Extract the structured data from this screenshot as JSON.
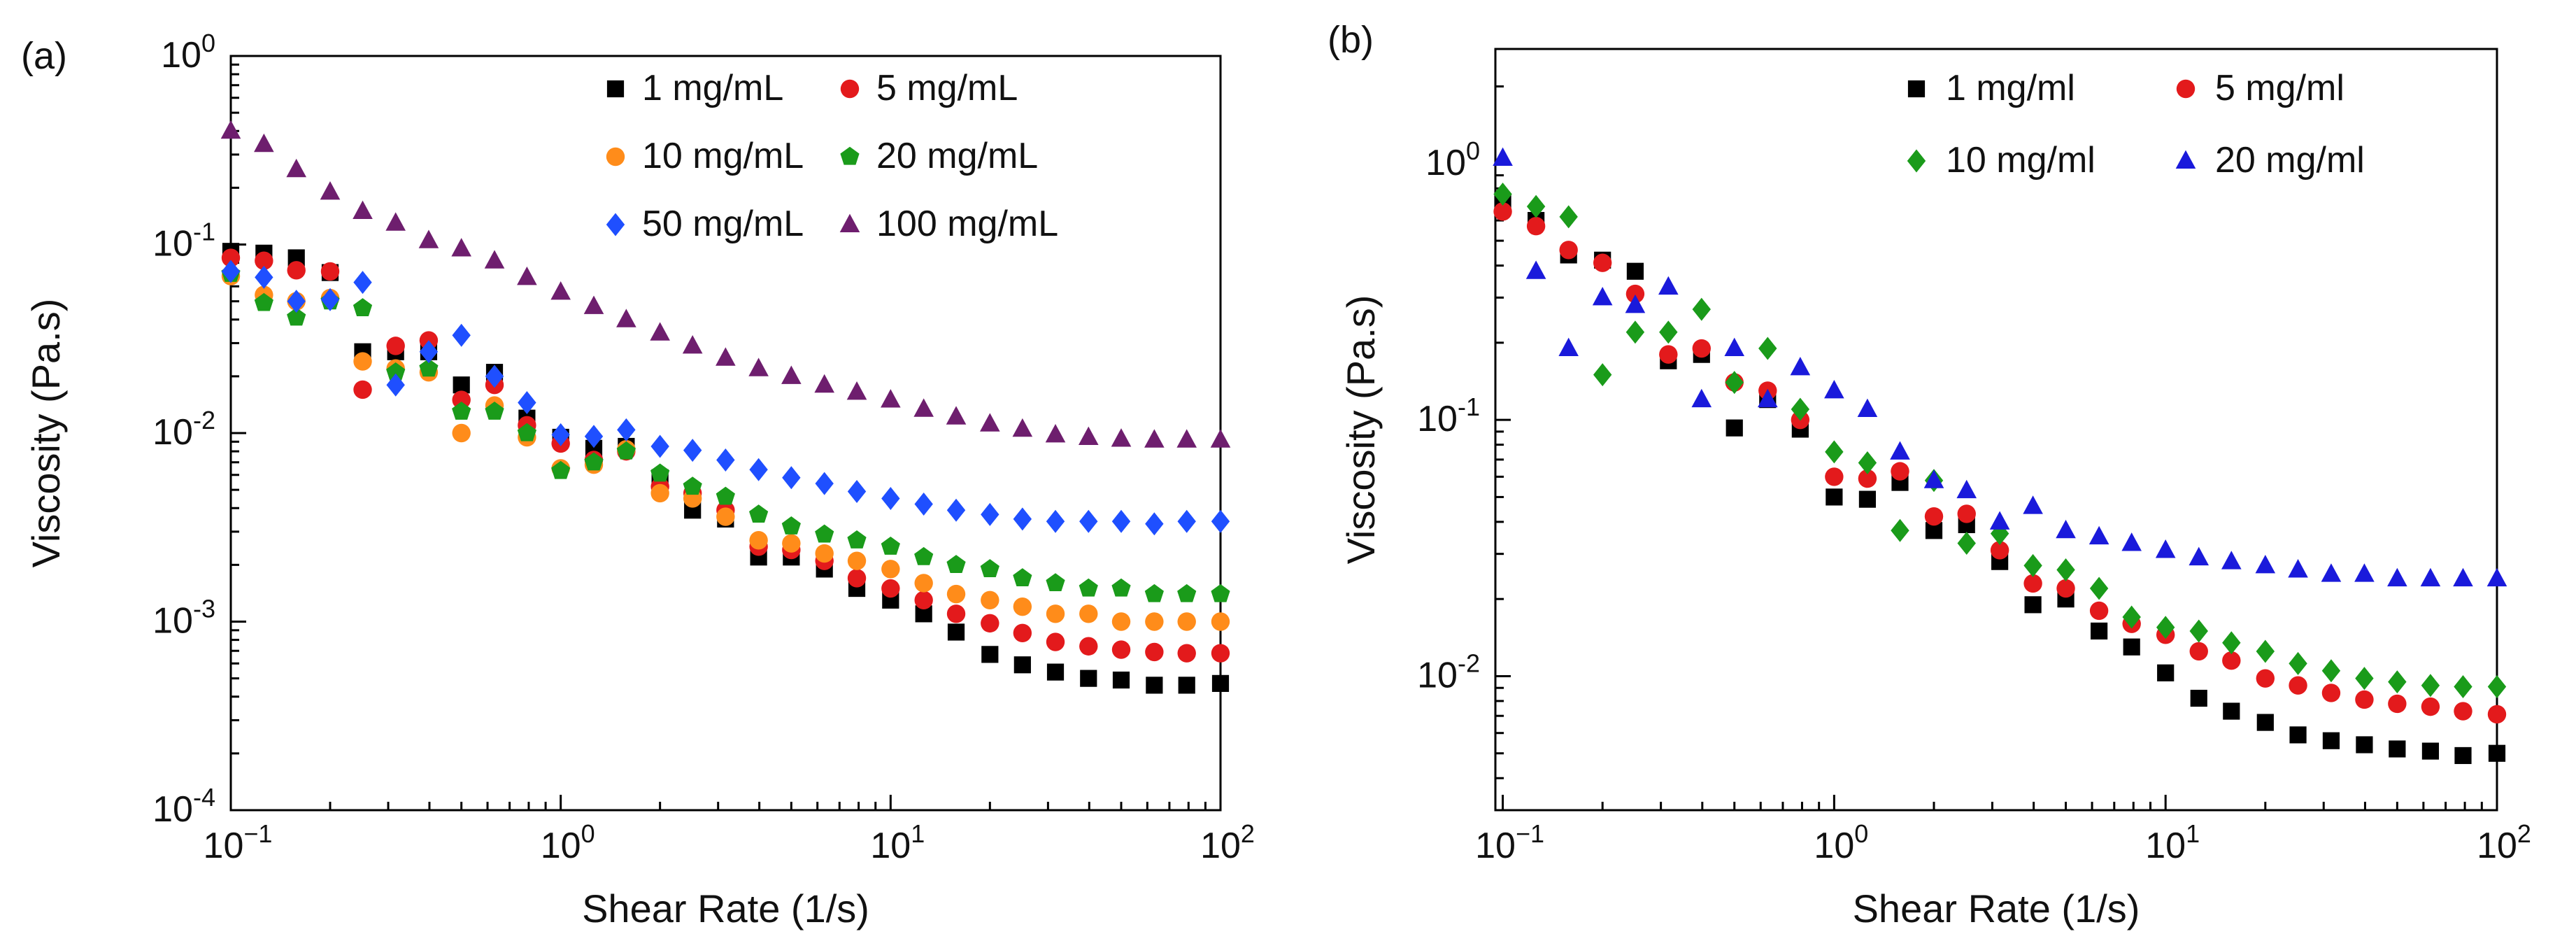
{
  "chart_data": [
    {
      "panel": "(a)",
      "type": "scatter",
      "xscale": "log",
      "yscale": "log",
      "xlabel": "Shear Rate (1/s)",
      "ylabel": "Viscosity (Pa.s)",
      "xlim": [
        0.1,
        100
      ],
      "ylim": [
        0.0001,
        1
      ],
      "xticks": [
        {
          "base": "10",
          "exp": "−1"
        },
        {
          "base": "10",
          "exp": "0"
        },
        {
          "base": "10",
          "exp": "1"
        },
        {
          "base": "10",
          "exp": "2"
        }
      ],
      "yticks": [
        {
          "base": "10",
          "exp": "-4"
        },
        {
          "base": "10",
          "exp": "-3"
        },
        {
          "base": "10",
          "exp": "-2"
        },
        {
          "base": "10",
          "exp": "-1"
        },
        {
          "base": "10",
          "exp": "0"
        }
      ],
      "legend_position": "top-right",
      "series": [
        {
          "name": "1 mg/mL",
          "color": "#000000",
          "marker": "square",
          "x": [
            0.1,
            0.126,
            0.158,
            0.2,
            0.251,
            0.316,
            0.398,
            0.5,
            0.63,
            0.79,
            1.0,
            1.26,
            1.58,
            2.0,
            2.51,
            3.16,
            3.98,
            5.0,
            6.3,
            7.9,
            10,
            12.6,
            15.8,
            20,
            25.1,
            31.6,
            39.8,
            50,
            63,
            79,
            100
          ],
          "y": [
            0.092,
            0.09,
            0.085,
            0.071,
            0.027,
            0.027,
            0.027,
            0.018,
            0.021,
            0.012,
            0.0095,
            0.0083,
            0.0085,
            0.0058,
            0.0039,
            0.0035,
            0.0022,
            0.0022,
            0.0019,
            0.0015,
            0.0013,
            0.0011,
            0.00088,
            0.00067,
            0.00059,
            0.00054,
            0.0005,
            0.00049,
            0.00046,
            0.00046,
            0.00047
          ]
        },
        {
          "name": "5 mg/mL",
          "color": "#e31a1c",
          "marker": "circle",
          "x": [
            0.1,
            0.126,
            0.158,
            0.2,
            0.251,
            0.316,
            0.398,
            0.5,
            0.63,
            0.79,
            1.0,
            1.26,
            1.58,
            2.0,
            2.51,
            3.16,
            3.98,
            5.0,
            6.3,
            7.9,
            10,
            12.6,
            15.8,
            20,
            25.1,
            31.6,
            39.8,
            50,
            63,
            79,
            100
          ],
          "y": [
            0.085,
            0.082,
            0.073,
            0.072,
            0.017,
            0.029,
            0.031,
            0.015,
            0.018,
            0.011,
            0.0088,
            0.0072,
            0.008,
            0.0052,
            0.0048,
            0.0039,
            0.0025,
            0.0024,
            0.0021,
            0.0017,
            0.0015,
            0.0013,
            0.0011,
            0.00098,
            0.00087,
            0.00078,
            0.00074,
            0.00071,
            0.00069,
            0.00068,
            0.00068
          ]
        },
        {
          "name": "10 mg/mL",
          "color": "#ff8c1a",
          "marker": "circle",
          "x": [
            0.1,
            0.126,
            0.158,
            0.2,
            0.251,
            0.316,
            0.398,
            0.5,
            0.63,
            0.79,
            1.0,
            1.26,
            1.58,
            2.0,
            2.51,
            3.16,
            3.98,
            5.0,
            6.3,
            7.9,
            10,
            12.6,
            15.8,
            20,
            25.1,
            31.6,
            39.8,
            50,
            63,
            79,
            100
          ],
          "y": [
            0.068,
            0.054,
            0.05,
            0.052,
            0.024,
            0.022,
            0.021,
            0.01,
            0.014,
            0.0095,
            0.0065,
            0.0068,
            0.0082,
            0.0048,
            0.0045,
            0.0036,
            0.0027,
            0.0026,
            0.0023,
            0.0021,
            0.0019,
            0.0016,
            0.0014,
            0.0013,
            0.0012,
            0.0011,
            0.0011,
            0.001,
            0.001,
            0.001,
            0.001
          ]
        },
        {
          "name": "20 mg/mL",
          "color": "#1a9b1a",
          "marker": "pentagon",
          "x": [
            0.1,
            0.126,
            0.158,
            0.2,
            0.251,
            0.316,
            0.398,
            0.5,
            0.63,
            0.79,
            1.0,
            1.26,
            1.58,
            2.0,
            2.51,
            3.16,
            3.98,
            5.0,
            6.3,
            7.9,
            10,
            12.6,
            15.8,
            20,
            25.1,
            31.6,
            39.8,
            50,
            63,
            79,
            100
          ],
          "y": [
            0.07,
            0.049,
            0.041,
            0.05,
            0.046,
            0.021,
            0.022,
            0.013,
            0.013,
            0.01,
            0.0063,
            0.007,
            0.008,
            0.0061,
            0.0052,
            0.0046,
            0.0037,
            0.0032,
            0.0029,
            0.0027,
            0.0025,
            0.0022,
            0.002,
            0.0019,
            0.0017,
            0.0016,
            0.0015,
            0.0015,
            0.0014,
            0.0014,
            0.0014
          ]
        },
        {
          "name": "50 mg/mL",
          "color": "#1f4fff",
          "marker": "diamond",
          "x": [
            0.1,
            0.126,
            0.158,
            0.2,
            0.251,
            0.316,
            0.398,
            0.5,
            0.63,
            0.79,
            1.0,
            1.26,
            1.58,
            2.0,
            2.51,
            3.16,
            3.98,
            5.0,
            6.3,
            7.9,
            10,
            12.6,
            15.8,
            20,
            25.1,
            31.6,
            39.8,
            50,
            63,
            79,
            100
          ],
          "y": [
            0.072,
            0.067,
            0.05,
            0.051,
            0.063,
            0.018,
            0.027,
            0.033,
            0.02,
            0.0145,
            0.0098,
            0.0096,
            0.0104,
            0.0085,
            0.0081,
            0.0072,
            0.0064,
            0.0058,
            0.0054,
            0.0049,
            0.0045,
            0.0042,
            0.0039,
            0.0037,
            0.0035,
            0.0034,
            0.0034,
            0.0034,
            0.0033,
            0.0034,
            0.0034
          ]
        },
        {
          "name": "100 mg/mL",
          "color": "#6e1e6e",
          "marker": "triangle",
          "x": [
            0.1,
            0.126,
            0.158,
            0.2,
            0.251,
            0.316,
            0.398,
            0.5,
            0.63,
            0.79,
            1.0,
            1.26,
            1.58,
            2.0,
            2.51,
            3.16,
            3.98,
            5.0,
            6.3,
            7.9,
            10,
            12.6,
            15.8,
            20,
            25.1,
            31.6,
            39.8,
            50,
            63,
            79,
            100
          ],
          "y": [
            0.4,
            0.34,
            0.25,
            0.19,
            0.15,
            0.13,
            0.105,
            0.095,
            0.082,
            0.067,
            0.056,
            0.047,
            0.04,
            0.034,
            0.029,
            0.025,
            0.022,
            0.02,
            0.018,
            0.0165,
            0.015,
            0.0134,
            0.0122,
            0.0112,
            0.0105,
            0.0098,
            0.0095,
            0.0093,
            0.0092,
            0.0092,
            0.0092
          ]
        }
      ]
    },
    {
      "panel": "(b)",
      "type": "scatter",
      "xscale": "log",
      "yscale": "log",
      "xlabel": "Shear Rate (1/s)",
      "ylabel": "Viscosity (Pa.s)",
      "xlim": [
        0.095,
        100
      ],
      "ylim": [
        0.003,
        2.8
      ],
      "xticks": [
        {
          "base": "10",
          "exp": "−1"
        },
        {
          "base": "10",
          "exp": "0"
        },
        {
          "base": "10",
          "exp": "1"
        },
        {
          "base": "10",
          "exp": "2"
        }
      ],
      "yticks": [
        {
          "base": "10",
          "exp": "-2"
        },
        {
          "base": "10",
          "exp": "-1"
        },
        {
          "base": "10",
          "exp": "0"
        }
      ],
      "legend_position": "top-right",
      "series": [
        {
          "name": "1 mg/ml",
          "color": "#000000",
          "marker": "square",
          "x": [
            0.1,
            0.126,
            0.158,
            0.2,
            0.251,
            0.316,
            0.398,
            0.5,
            0.63,
            0.79,
            1.0,
            1.26,
            1.58,
            2.0,
            2.51,
            3.16,
            3.98,
            5.0,
            6.3,
            7.9,
            10,
            12.6,
            15.8,
            20,
            25.1,
            31.6,
            39.8,
            50,
            63,
            79,
            100
          ],
          "y": [
            0.7,
            0.6,
            0.44,
            0.42,
            0.38,
            0.17,
            0.18,
            0.093,
            0.12,
            0.092,
            0.05,
            0.049,
            0.057,
            0.037,
            0.039,
            0.028,
            0.019,
            0.02,
            0.015,
            0.013,
            0.0103,
            0.0082,
            0.0073,
            0.0066,
            0.0059,
            0.0056,
            0.0054,
            0.0052,
            0.0051,
            0.0049,
            0.005
          ]
        },
        {
          "name": "5 mg/ml",
          "color": "#e31a1c",
          "marker": "circle",
          "x": [
            0.1,
            0.126,
            0.158,
            0.2,
            0.251,
            0.316,
            0.398,
            0.5,
            0.63,
            0.79,
            1.0,
            1.26,
            1.58,
            2.0,
            2.51,
            3.16,
            3.98,
            5.0,
            6.3,
            7.9,
            10,
            12.6,
            15.8,
            20,
            25.1,
            31.6,
            39.8,
            50,
            63,
            79,
            100
          ],
          "y": [
            0.65,
            0.57,
            0.46,
            0.41,
            0.31,
            0.18,
            0.19,
            0.14,
            0.13,
            0.1,
            0.06,
            0.059,
            0.063,
            0.042,
            0.043,
            0.031,
            0.023,
            0.022,
            0.018,
            0.016,
            0.0145,
            0.0125,
            0.0115,
            0.0098,
            0.0092,
            0.0086,
            0.0081,
            0.0078,
            0.0076,
            0.0073,
            0.0071
          ]
        },
        {
          "name": "10 mg/ml",
          "color": "#1a9b1a",
          "marker": "diamond",
          "x": [
            0.1,
            0.126,
            0.158,
            0.2,
            0.251,
            0.316,
            0.398,
            0.5,
            0.63,
            0.79,
            1.0,
            1.26,
            1.58,
            2.0,
            2.51,
            3.16,
            3.98,
            5.0,
            6.3,
            7.9,
            10,
            12.6,
            15.8,
            20,
            25.1,
            31.6,
            39.8,
            50,
            63,
            79,
            100
          ],
          "y": [
            0.76,
            0.68,
            0.62,
            0.15,
            0.22,
            0.22,
            0.27,
            0.14,
            0.19,
            0.11,
            0.075,
            0.068,
            0.037,
            0.058,
            0.033,
            0.036,
            0.027,
            0.026,
            0.022,
            0.017,
            0.0155,
            0.015,
            0.0135,
            0.0125,
            0.0112,
            0.0105,
            0.0098,
            0.0095,
            0.0092,
            0.0091,
            0.0091
          ]
        },
        {
          "name": "20 mg/ml",
          "color": "#1a1adb",
          "marker": "triangle",
          "x": [
            0.1,
            0.126,
            0.158,
            0.2,
            0.251,
            0.316,
            0.398,
            0.5,
            0.63,
            0.79,
            1.0,
            1.26,
            1.58,
            2.0,
            2.51,
            3.16,
            3.98,
            5.0,
            6.3,
            7.9,
            10,
            12.6,
            15.8,
            20,
            25.1,
            31.6,
            39.8,
            50,
            63,
            79,
            100
          ],
          "y": [
            1.05,
            0.38,
            0.19,
            0.3,
            0.28,
            0.33,
            0.12,
            0.19,
            0.12,
            0.16,
            0.13,
            0.11,
            0.075,
            0.058,
            0.053,
            0.04,
            0.046,
            0.037,
            0.035,
            0.033,
            0.031,
            0.029,
            0.028,
            0.027,
            0.026,
            0.025,
            0.025,
            0.024,
            0.024,
            0.024,
            0.024
          ]
        }
      ]
    }
  ]
}
